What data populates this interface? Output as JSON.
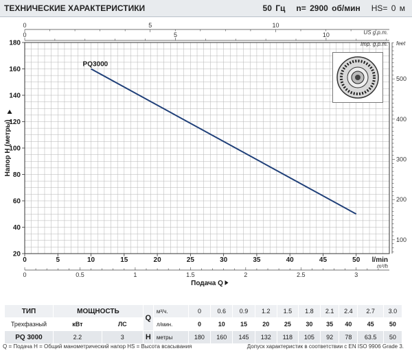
{
  "header": {
    "title": "ТЕХНИЧЕСКИЕ ХАРАКТЕРИСТИКИ",
    "freq": "50 Гц",
    "speed": "n= 2900 об/мин",
    "hs": "HS= 0 м"
  },
  "chart_data": {
    "type": "line",
    "series": [
      {
        "name": "PQ3000",
        "x": [
          10,
          50
        ],
        "y": [
          160,
          50
        ]
      }
    ],
    "x_lmin": {
      "min": 0,
      "max": 55,
      "ticks": [
        0,
        5,
        10,
        15,
        20,
        25,
        30,
        35,
        40,
        45,
        50
      ],
      "unit": "l/min"
    },
    "x_m3h": {
      "ticks": [
        0,
        0.5,
        1,
        1.5,
        2,
        2.5,
        3
      ],
      "unit": "m³/h"
    },
    "x_us_gpm": {
      "ticks": [
        0,
        5,
        10
      ],
      "unit": "US g.p.m."
    },
    "x_imp_gpm": {
      "ticks": [
        0,
        5,
        10
      ],
      "unit": "Imp. g.p.m."
    },
    "y_m": {
      "min": 20,
      "max": 180,
      "ticks": [
        20,
        40,
        60,
        80,
        100,
        120,
        140,
        160,
        180
      ]
    },
    "y_feet": {
      "ticks": [
        100,
        200,
        300,
        400,
        500
      ],
      "unit": "feet"
    },
    "xlabel": "Подача Q",
    "ylabel": "Напор H (метры)",
    "grid": true
  },
  "table": {
    "col_type": "ТИП",
    "col_power": "МОЩНОСТЬ",
    "phase": "Трехфазный",
    "kw": "кВт",
    "hp": "ЛС",
    "q_symbol": "Q",
    "h_symbol": "H",
    "q_unit_m3": "м³/ч.",
    "q_unit_lmin": "л/мин.",
    "h_unit": "метры",
    "q_m3h": [
      "0",
      "0.6",
      "0.9",
      "1.2",
      "1.5",
      "1.8",
      "2.1",
      "2.4",
      "2.7",
      "3.0"
    ],
    "q_lmin": [
      "0",
      "10",
      "15",
      "20",
      "25",
      "30",
      "35",
      "40",
      "45",
      "50"
    ],
    "model": "PQ 3000",
    "power_kw": "2.2",
    "power_hp": "3",
    "h_values": [
      "180",
      "160",
      "145",
      "132",
      "118",
      "105",
      "92",
      "78",
      "63.5",
      "50"
    ]
  },
  "footer": {
    "legend": "Q = Подача  H = Общий манометрический напор  HS = Высота всасывания",
    "tolerance": "Допуск характеристик в соответствии с EN ISO 9906 Grade 3."
  },
  "colors": {
    "curve": "#1f3f78",
    "grid": "#b3b3b3",
    "header_bg": "#e8ebee"
  }
}
